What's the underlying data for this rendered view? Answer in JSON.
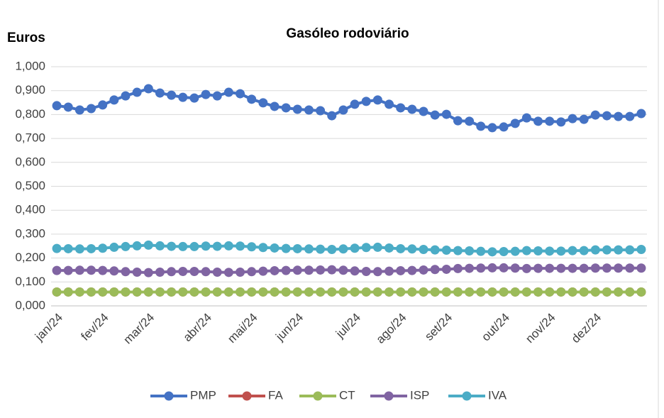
{
  "chart_data": {
    "type": "line",
    "title": "Gasóleo rodoviário",
    "y_label": "Euros",
    "categories": [
      "jan/24",
      null,
      null,
      null,
      "fev/24",
      null,
      null,
      null,
      "mar/24",
      null,
      null,
      null,
      null,
      "abr/24",
      null,
      null,
      null,
      "mai/24",
      null,
      null,
      null,
      "jun/24",
      null,
      null,
      null,
      null,
      "jul/24",
      null,
      null,
      null,
      "ago/24",
      null,
      null,
      null,
      "set/24",
      null,
      null,
      null,
      null,
      "out/24",
      null,
      null,
      null,
      "nov/24",
      null,
      null,
      null,
      "dez/24",
      null,
      null,
      null,
      null
    ],
    "series": [
      {
        "name": "PMP",
        "color": "#4472c4",
        "values": [
          0.837,
          0.831,
          0.819,
          0.825,
          0.84,
          0.861,
          0.878,
          0.893,
          0.908,
          0.89,
          0.881,
          0.872,
          0.869,
          0.884,
          0.878,
          0.893,
          0.887,
          0.864,
          0.849,
          0.834,
          0.828,
          0.822,
          0.819,
          0.816,
          0.795,
          0.819,
          0.843,
          0.855,
          0.861,
          0.843,
          0.828,
          0.822,
          0.813,
          0.798,
          0.801,
          0.774,
          0.772,
          0.751,
          0.745,
          0.748,
          0.763,
          0.786,
          0.772,
          0.772,
          0.769,
          0.783,
          0.78,
          0.798,
          0.795,
          0.792,
          0.792,
          0.804
        ]
      },
      {
        "name": "FA",
        "color": "#c0504d",
        "values": [
          0.058,
          0.058,
          0.058,
          0.058,
          0.058,
          0.058,
          0.058,
          0.058,
          0.058,
          0.058,
          0.058,
          0.058,
          0.058,
          0.058,
          0.058,
          0.058,
          0.058,
          0.058,
          0.058,
          0.058,
          0.058,
          0.058,
          0.058,
          0.058,
          0.058,
          0.058,
          0.058,
          0.058,
          0.058,
          0.058,
          0.058,
          0.058,
          0.058,
          0.058,
          0.058,
          0.058,
          0.058,
          0.058,
          0.058,
          0.058,
          0.058,
          0.058,
          0.058,
          0.058,
          0.058,
          0.058,
          0.058,
          0.058,
          0.058,
          0.058,
          0.058,
          0.058
        ]
      },
      {
        "name": "CT",
        "color": "#9bbb59",
        "values": [
          0.058,
          0.058,
          0.058,
          0.058,
          0.058,
          0.058,
          0.058,
          0.058,
          0.058,
          0.058,
          0.058,
          0.058,
          0.058,
          0.058,
          0.058,
          0.058,
          0.058,
          0.058,
          0.058,
          0.058,
          0.058,
          0.058,
          0.058,
          0.058,
          0.058,
          0.058,
          0.058,
          0.058,
          0.058,
          0.058,
          0.058,
          0.058,
          0.058,
          0.058,
          0.058,
          0.058,
          0.058,
          0.058,
          0.058,
          0.058,
          0.058,
          0.058,
          0.058,
          0.058,
          0.058,
          0.058,
          0.058,
          0.058,
          0.058,
          0.058,
          0.058,
          0.058
        ]
      },
      {
        "name": "ISP",
        "color": "#8064a2",
        "values": [
          0.148,
          0.148,
          0.149,
          0.149,
          0.148,
          0.146,
          0.143,
          0.141,
          0.139,
          0.141,
          0.143,
          0.144,
          0.144,
          0.143,
          0.141,
          0.14,
          0.141,
          0.143,
          0.145,
          0.147,
          0.148,
          0.149,
          0.149,
          0.15,
          0.151,
          0.149,
          0.146,
          0.144,
          0.143,
          0.145,
          0.147,
          0.148,
          0.15,
          0.152,
          0.153,
          0.156,
          0.157,
          0.158,
          0.159,
          0.159,
          0.158,
          0.156,
          0.157,
          0.157,
          0.157,
          0.157,
          0.157,
          0.158,
          0.158,
          0.158,
          0.158,
          0.158
        ]
      },
      {
        "name": "IVA",
        "color": "#4bacc6",
        "values": [
          0.24,
          0.239,
          0.238,
          0.239,
          0.241,
          0.245,
          0.248,
          0.251,
          0.254,
          0.251,
          0.249,
          0.248,
          0.248,
          0.25,
          0.249,
          0.251,
          0.25,
          0.247,
          0.244,
          0.242,
          0.24,
          0.239,
          0.238,
          0.237,
          0.236,
          0.238,
          0.241,
          0.244,
          0.245,
          0.242,
          0.239,
          0.238,
          0.236,
          0.234,
          0.233,
          0.231,
          0.23,
          0.228,
          0.226,
          0.227,
          0.228,
          0.231,
          0.23,
          0.229,
          0.229,
          0.231,
          0.231,
          0.234,
          0.234,
          0.234,
          0.234,
          0.236
        ]
      }
    ],
    "ylim": [
      0,
      1
    ],
    "yticks": [
      {
        "value": 0,
        "label": "0,000"
      },
      {
        "value": 0.1,
        "label": "0,100"
      },
      {
        "value": 0.2,
        "label": "0,200"
      },
      {
        "value": 0.3,
        "label": "0,300"
      },
      {
        "value": 0.4,
        "label": "0,400"
      },
      {
        "value": 0.5,
        "label": "0,500"
      },
      {
        "value": 0.6,
        "label": "0,600"
      },
      {
        "value": 0.7,
        "label": "0,700"
      },
      {
        "value": 0.8,
        "label": "0,800"
      },
      {
        "value": 0.9,
        "label": "0,900"
      },
      {
        "value": 1,
        "label": "1,000"
      }
    ],
    "grid": true,
    "legend": "bottom"
  }
}
